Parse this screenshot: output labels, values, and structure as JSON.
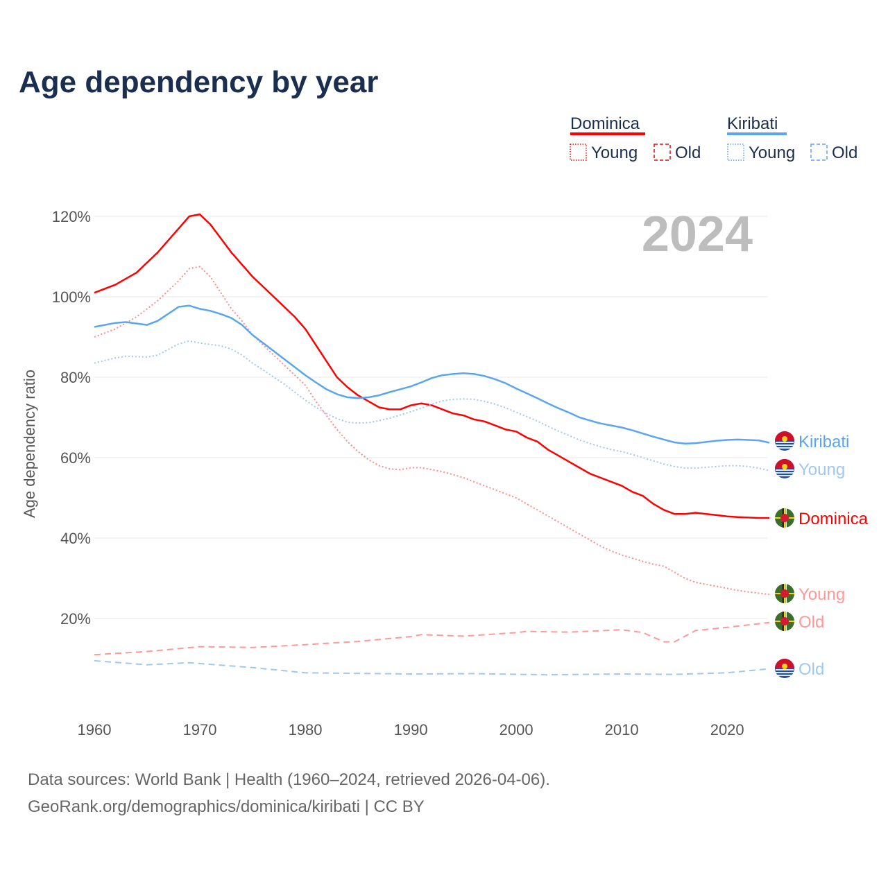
{
  "chart_data": {
    "type": "line",
    "title": "Age dependency by year",
    "ylabel": "Age dependency ratio",
    "xlabel": "",
    "year_label": "2024",
    "xlim": [
      1960,
      2024
    ],
    "ylim": [
      0,
      120
    ],
    "x_ticks": [
      "1960",
      "1970",
      "1980",
      "1990",
      "2000",
      "2010",
      "2020"
    ],
    "y_ticks": [
      "20%",
      "40%",
      "60%",
      "80%",
      "100%",
      "120%"
    ],
    "grid": true,
    "legend": {
      "placement": "top-right",
      "groups": [
        {
          "name": "Dominica",
          "color": "#ff0000",
          "items": [
            "Young",
            "Old"
          ]
        },
        {
          "name": "Kiribati",
          "color": "#5aa5f0",
          "items": [
            "Young",
            "Old"
          ]
        }
      ]
    },
    "series": [
      {
        "id": "dominica-total",
        "name": "Dominica",
        "end_label": "Dominica",
        "country": "dominica",
        "style": "solid",
        "color": "#ff0000",
        "x": [
          1960,
          1962,
          1964,
          1966,
          1968,
          1969,
          1970,
          1971,
          1972,
          1973,
          1974,
          1975,
          1976,
          1977,
          1978,
          1979,
          1980,
          1981,
          1982,
          1983,
          1984,
          1985,
          1986,
          1987,
          1988,
          1989,
          1990,
          1991,
          1992,
          1993,
          1994,
          1995,
          1996,
          1997,
          1998,
          1999,
          2000,
          2001,
          2002,
          2003,
          2004,
          2005,
          2006,
          2007,
          2008,
          2009,
          2010,
          2011,
          2012,
          2013,
          2014,
          2015,
          2016,
          2017,
          2018,
          2019,
          2020,
          2021,
          2022,
          2023,
          2024
        ],
        "y": [
          101,
          103,
          106,
          111,
          117,
          120,
          120.5,
          118,
          114.5,
          111,
          108,
          105,
          102.5,
          100,
          97.5,
          95,
          92,
          88,
          84,
          80,
          77.5,
          75.5,
          74,
          72.5,
          72,
          72,
          73,
          73.5,
          73,
          72,
          71,
          70.5,
          69.5,
          69,
          68,
          67,
          66.5,
          65,
          64,
          62,
          60.5,
          59,
          57.5,
          56,
          55,
          54,
          53,
          51.5,
          50.5,
          48.5,
          47,
          46,
          46,
          46.3,
          46,
          45.7,
          45.4,
          45.2,
          45.1,
          45,
          45
        ]
      },
      {
        "id": "dominica-young",
        "name": "Young",
        "end_label": "Young",
        "country": "dominica",
        "style": "dotted",
        "color": "#ff8a8a",
        "x": [
          1960,
          1962,
          1964,
          1966,
          1968,
          1969,
          1970,
          1971,
          1972,
          1973,
          1974,
          1975,
          1976,
          1977,
          1978,
          1979,
          1980,
          1981,
          1982,
          1983,
          1984,
          1985,
          1986,
          1987,
          1988,
          1989,
          1990,
          1991,
          1992,
          1993,
          1994,
          1995,
          1996,
          1997,
          1998,
          1999,
          2000,
          2001,
          2002,
          2003,
          2004,
          2005,
          2006,
          2007,
          2008,
          2009,
          2010,
          2011,
          2012,
          2013,
          2014,
          2015,
          2016,
          2017,
          2018,
          2019,
          2020,
          2021,
          2022,
          2023,
          2024
        ],
        "y": [
          90,
          92,
          95,
          99,
          104,
          107,
          107.5,
          105,
          101,
          97,
          94,
          90.5,
          88,
          85.5,
          83,
          80.5,
          78,
          74,
          70.5,
          67,
          64,
          61.5,
          59.5,
          58,
          57.2,
          57,
          57.5,
          57.5,
          57,
          56.5,
          55.8,
          55,
          54,
          53,
          52,
          51,
          50,
          48.5,
          47,
          45.5,
          44,
          42.5,
          41,
          39.5,
          38,
          36.8,
          35.8,
          35,
          34.2,
          33.5,
          33,
          31.5,
          30,
          29,
          28.5,
          28,
          27.5,
          27,
          26.6,
          26.3,
          26
        ]
      },
      {
        "id": "dominica-old",
        "name": "Old",
        "end_label": "Old",
        "country": "dominica",
        "style": "dashed",
        "color": "#ff9999",
        "x": [
          1960,
          1965,
          1970,
          1975,
          1980,
          1985,
          1990,
          1991,
          1995,
          2000,
          2001,
          2005,
          2010,
          2012,
          2014,
          2015,
          2017,
          2020,
          2024
        ],
        "y": [
          11,
          11.8,
          13,
          12.8,
          13.5,
          14.3,
          15.5,
          16,
          15.6,
          16.5,
          16.8,
          16.6,
          17.2,
          16.5,
          14.2,
          14.2,
          17,
          17.8,
          19
        ]
      },
      {
        "id": "kiribati-total",
        "name": "Kiribati",
        "end_label": "Kiribati",
        "country": "kiribati",
        "style": "solid",
        "color": "#5aa5f0",
        "x": [
          1960,
          1962,
          1963,
          1965,
          1966,
          1968,
          1969,
          1970,
          1971,
          1972,
          1973,
          1974,
          1975,
          1976,
          1977,
          1978,
          1979,
          1980,
          1981,
          1982,
          1983,
          1984,
          1985,
          1986,
          1987,
          1988,
          1989,
          1990,
          1991,
          1992,
          1993,
          1994,
          1995,
          1996,
          1997,
          1998,
          1999,
          2000,
          2001,
          2002,
          2003,
          2004,
          2005,
          2006,
          2007,
          2008,
          2009,
          2010,
          2011,
          2012,
          2013,
          2014,
          2015,
          2016,
          2017,
          2018,
          2019,
          2020,
          2021,
          2022,
          2023,
          2024
        ],
        "y": [
          92.5,
          93.5,
          93.7,
          93,
          94,
          97.5,
          97.8,
          97,
          96.5,
          95.7,
          94.7,
          93,
          90.5,
          88.5,
          86.5,
          84.5,
          82.5,
          80.5,
          78.7,
          77,
          75.8,
          75,
          74.8,
          75,
          75.5,
          76.3,
          77,
          77.7,
          78.7,
          79.8,
          80.5,
          80.8,
          81,
          80.8,
          80.3,
          79.5,
          78.5,
          77.2,
          76,
          74.8,
          73.5,
          72.3,
          71.2,
          70,
          69.2,
          68.5,
          68,
          67.5,
          66.8,
          66,
          65.2,
          64.5,
          63.8,
          63.5,
          63.6,
          63.9,
          64.2,
          64.4,
          64.5,
          64.4,
          64.3,
          63.7
        ]
      },
      {
        "id": "kiribati-young",
        "name": "Young",
        "end_label": "Young",
        "country": "kiribati",
        "style": "dotted",
        "color": "#9fc8f0",
        "x": [
          1960,
          1962,
          1963,
          1965,
          1966,
          1968,
          1969,
          1970,
          1972,
          1973,
          1974,
          1975,
          1976,
          1977,
          1978,
          1979,
          1980,
          1981,
          1982,
          1983,
          1984,
          1985,
          1986,
          1987,
          1988,
          1989,
          1990,
          1991,
          1992,
          1993,
          1994,
          1995,
          1996,
          1997,
          1998,
          1999,
          2000,
          2001,
          2002,
          2003,
          2004,
          2005,
          2006,
          2007,
          2008,
          2009,
          2010,
          2011,
          2012,
          2013,
          2014,
          2015,
          2016,
          2017,
          2018,
          2019,
          2020,
          2021,
          2022,
          2023,
          2024
        ],
        "y": [
          83.5,
          84.8,
          85.2,
          85,
          85.5,
          88.3,
          89,
          88.5,
          87.8,
          87,
          85.5,
          83.5,
          81.8,
          80,
          78.3,
          76.3,
          74.3,
          72.5,
          71,
          69.7,
          68.8,
          68.6,
          68.7,
          69.2,
          69.8,
          70.6,
          71.4,
          72.3,
          73.3,
          74.1,
          74.5,
          74.6,
          74.5,
          74,
          73.3,
          72.4,
          71.3,
          70.2,
          69.1,
          67.8,
          66.6,
          65.5,
          64.4,
          63.5,
          62.7,
          62,
          61.5,
          60.8,
          60,
          59.2,
          58.4,
          57.8,
          57.4,
          57.4,
          57.6,
          57.8,
          58,
          58,
          57.8,
          57.4,
          56.8
        ]
      },
      {
        "id": "kiribati-old",
        "name": "Old",
        "end_label": "Old",
        "country": "kiribati",
        "style": "dashed",
        "color": "#9fc8f0",
        "x": [
          1960,
          1965,
          1969,
          1972,
          1975,
          1980,
          1990,
          1996,
          2003,
          2010,
          2015,
          2020,
          2024
        ],
        "y": [
          9.5,
          8.5,
          9,
          8.4,
          7.8,
          6.5,
          6.2,
          6.3,
          6,
          6.2,
          6.1,
          6.5,
          7.5
        ]
      }
    ]
  },
  "footer": {
    "line1": "Data sources: World Bank | Health (1960–2024, retrieved 2026-04-06).",
    "line2": "GeoRank.org/demographics/dominica/kiribati | CC BY"
  }
}
